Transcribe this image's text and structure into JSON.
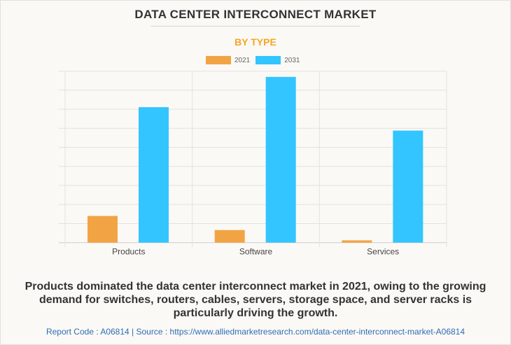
{
  "title": "DATA CENTER INTERCONNECT MARKET",
  "subtitle": "BY TYPE",
  "chart_data": {
    "type": "bar",
    "categories": [
      "Products",
      "Software",
      "Services"
    ],
    "series": [
      {
        "name": "2021",
        "color": "#f2a444",
        "values": [
          1.4,
          0.66,
          0.12
        ]
      },
      {
        "name": "2031",
        "color": "#33c5ff",
        "values": [
          7.11,
          8.7,
          5.88
        ]
      }
    ],
    "ylim": [
      0,
      9
    ],
    "y_axis_labels_shown": false,
    "grid": true,
    "legend": "top-center"
  },
  "caption": "Products dominated the data center interconnect market in 2021, owing to the growing demand for switches, routers, cables, servers, storage space, and server racks is particularly driving the growth.",
  "footer": "Report Code : A06814  |  Source : https://www.alliedmarketresearch.com/data-center-interconnect-market-A06814"
}
